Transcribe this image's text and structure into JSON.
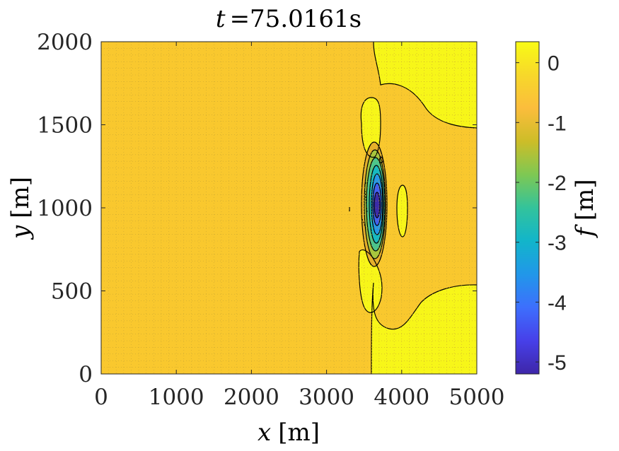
{
  "chart_data": {
    "type": "heatmap",
    "title_var": "t",
    "title_value": "=75.0161s",
    "xlabel_var": "x",
    "xlabel_unit": "[m]",
    "ylabel_var": "y",
    "ylabel_unit": "[m]",
    "colorbar_label_var": "f",
    "colorbar_label_unit": "[m]",
    "xlim": [
      0,
      5000
    ],
    "ylim": [
      0,
      2000
    ],
    "xticks": [
      0,
      1000,
      2000,
      3000,
      4000,
      5000
    ],
    "yticks": [
      0,
      500,
      1000,
      1500,
      2000
    ],
    "xtick_labels": [
      "0",
      "1000",
      "2000",
      "3000",
      "4000",
      "5000"
    ],
    "ytick_labels": [
      "0",
      "500",
      "1000",
      "1500",
      "2000"
    ],
    "clim": [
      -5.2,
      0.35
    ],
    "colorbar_ticks": [
      0,
      -1,
      -2,
      -3,
      -4,
      -5
    ],
    "colorbar_tick_labels": [
      "0",
      "-1",
      "-2",
      "-3",
      "-4",
      "-5"
    ],
    "colormap": "parula",
    "grid": true,
    "background_level": -0.2,
    "colors": {
      "background_fill": "#f9c82e",
      "positive_fill": "#f7f619",
      "contour_line": "#000000",
      "grid_line": "#c9a632"
    }
  }
}
